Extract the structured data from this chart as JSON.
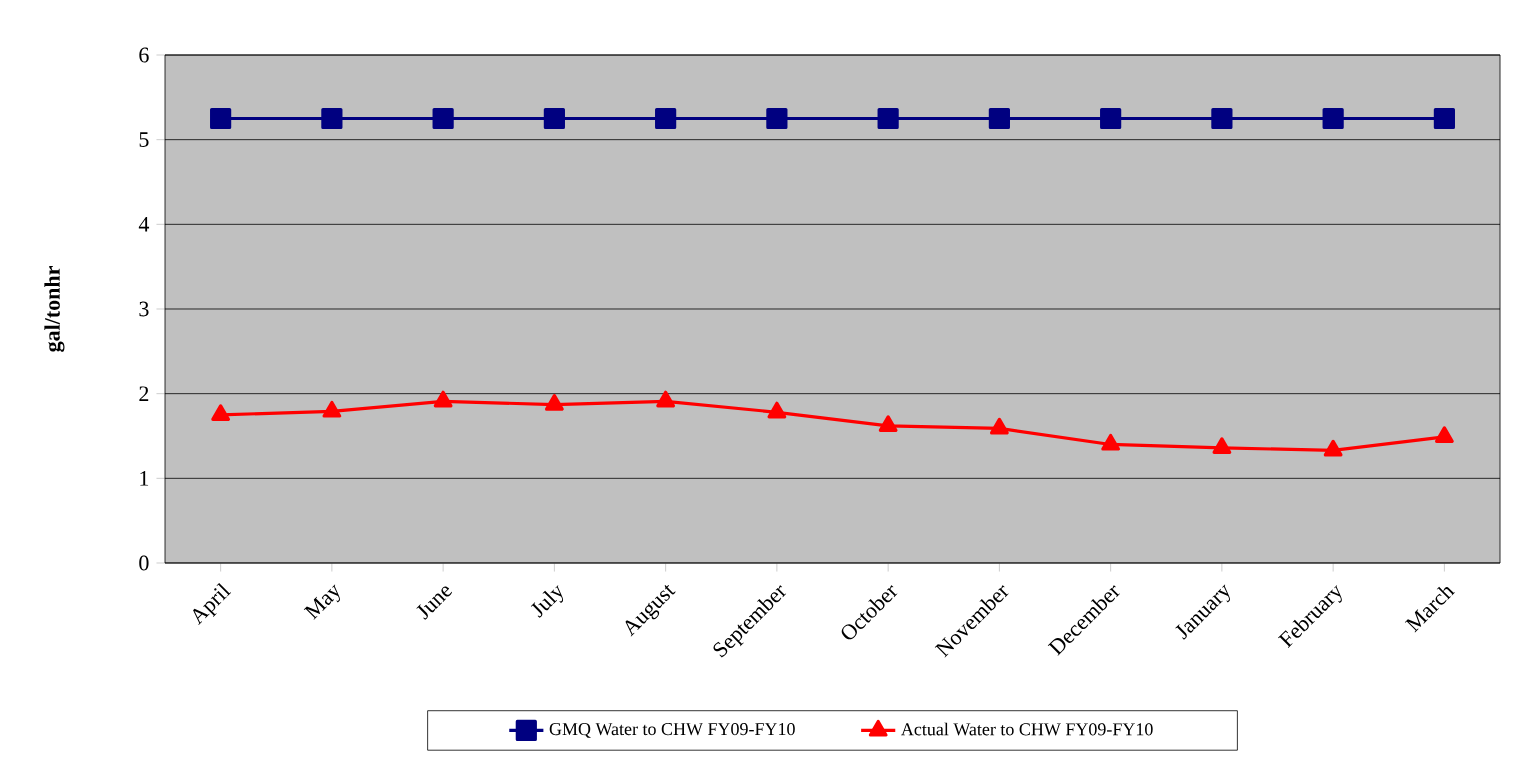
{
  "chart_data": {
    "type": "line",
    "ylabel": "gal/tonhr",
    "categories": [
      "April",
      "May",
      "June",
      "July",
      "August",
      "September",
      "October",
      "November",
      "December",
      "January",
      "February",
      "March"
    ],
    "series": [
      {
        "name": "GMQ Water to CHW FY09-FY10",
        "color": "#000080",
        "marker": "square",
        "values": [
          5.25,
          5.25,
          5.25,
          5.25,
          5.25,
          5.25,
          5.25,
          5.25,
          5.25,
          5.25,
          5.25,
          5.25
        ]
      },
      {
        "name": "Actual Water to CHW FY09-FY10",
        "color": "#ff0000",
        "marker": "triangle",
        "values": [
          1.75,
          1.79,
          1.91,
          1.87,
          1.91,
          1.78,
          1.62,
          1.59,
          1.4,
          1.36,
          1.33,
          1.49
        ]
      }
    ],
    "ylim": [
      0,
      6
    ],
    "yticks": [
      0,
      1,
      2,
      3,
      4,
      5,
      6
    ],
    "grid": "y",
    "legend": "bottom",
    "line_style": "solid"
  }
}
